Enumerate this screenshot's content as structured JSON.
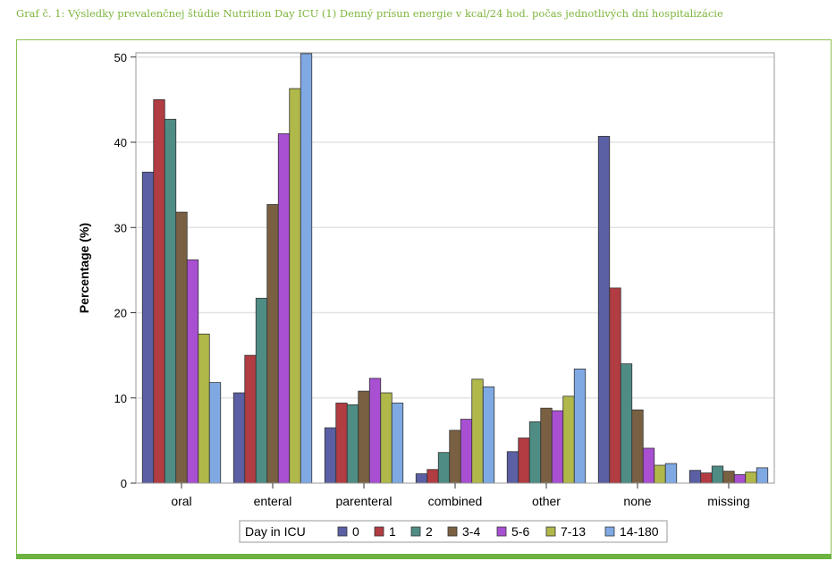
{
  "caption": "Graf č. 1: Výsledky prevalenčnej štúdie Nutrition Day ICU (1) Denný prísun energie v kcal/24 hod. počas jednotlivých dní hospitalizácie",
  "colors": {
    "caption": "#7db53d",
    "frame_border": "#8cc152",
    "bottom_bar": "#6cb33f",
    "grid": "#e3e3e3"
  },
  "chart_data": {
    "type": "bar",
    "title": "",
    "xlabel": "",
    "ylabel": "Percentage (%)",
    "ylim": [
      0,
      50.5
    ],
    "yticks": [
      0,
      10,
      20,
      30,
      40,
      50
    ],
    "grid": true,
    "legend_title": "Day in ICU",
    "legend_position": "bottom",
    "categories": [
      "oral",
      "enteral",
      "parenteral",
      "combined",
      "other",
      "none",
      "missing"
    ],
    "series": [
      {
        "name": "0",
        "color": "#5b5fa3",
        "values": [
          36.5,
          10.6,
          6.5,
          1.1,
          3.7,
          40.7,
          1.5
        ]
      },
      {
        "name": "1",
        "color": "#b13c42",
        "values": [
          45.0,
          15.0,
          9.4,
          1.6,
          5.3,
          22.9,
          1.2
        ]
      },
      {
        "name": "2",
        "color": "#4f8d84",
        "values": [
          42.7,
          21.7,
          9.2,
          3.6,
          7.2,
          14.0,
          2.0
        ]
      },
      {
        "name": "3-4",
        "color": "#7a6042",
        "values": [
          31.8,
          32.7,
          10.8,
          6.2,
          8.8,
          8.6,
          1.4
        ]
      },
      {
        "name": "5-6",
        "color": "#a84fd2",
        "values": [
          26.2,
          41.0,
          12.3,
          7.5,
          8.5,
          4.1,
          1.0
        ]
      },
      {
        "name": "7-13",
        "color": "#b0b84a",
        "values": [
          17.5,
          46.3,
          10.6,
          12.2,
          10.2,
          2.1,
          1.3
        ]
      },
      {
        "name": "14-180",
        "color": "#7fa9e3",
        "values": [
          11.8,
          50.4,
          9.4,
          11.3,
          13.4,
          2.3,
          1.8
        ]
      }
    ]
  }
}
